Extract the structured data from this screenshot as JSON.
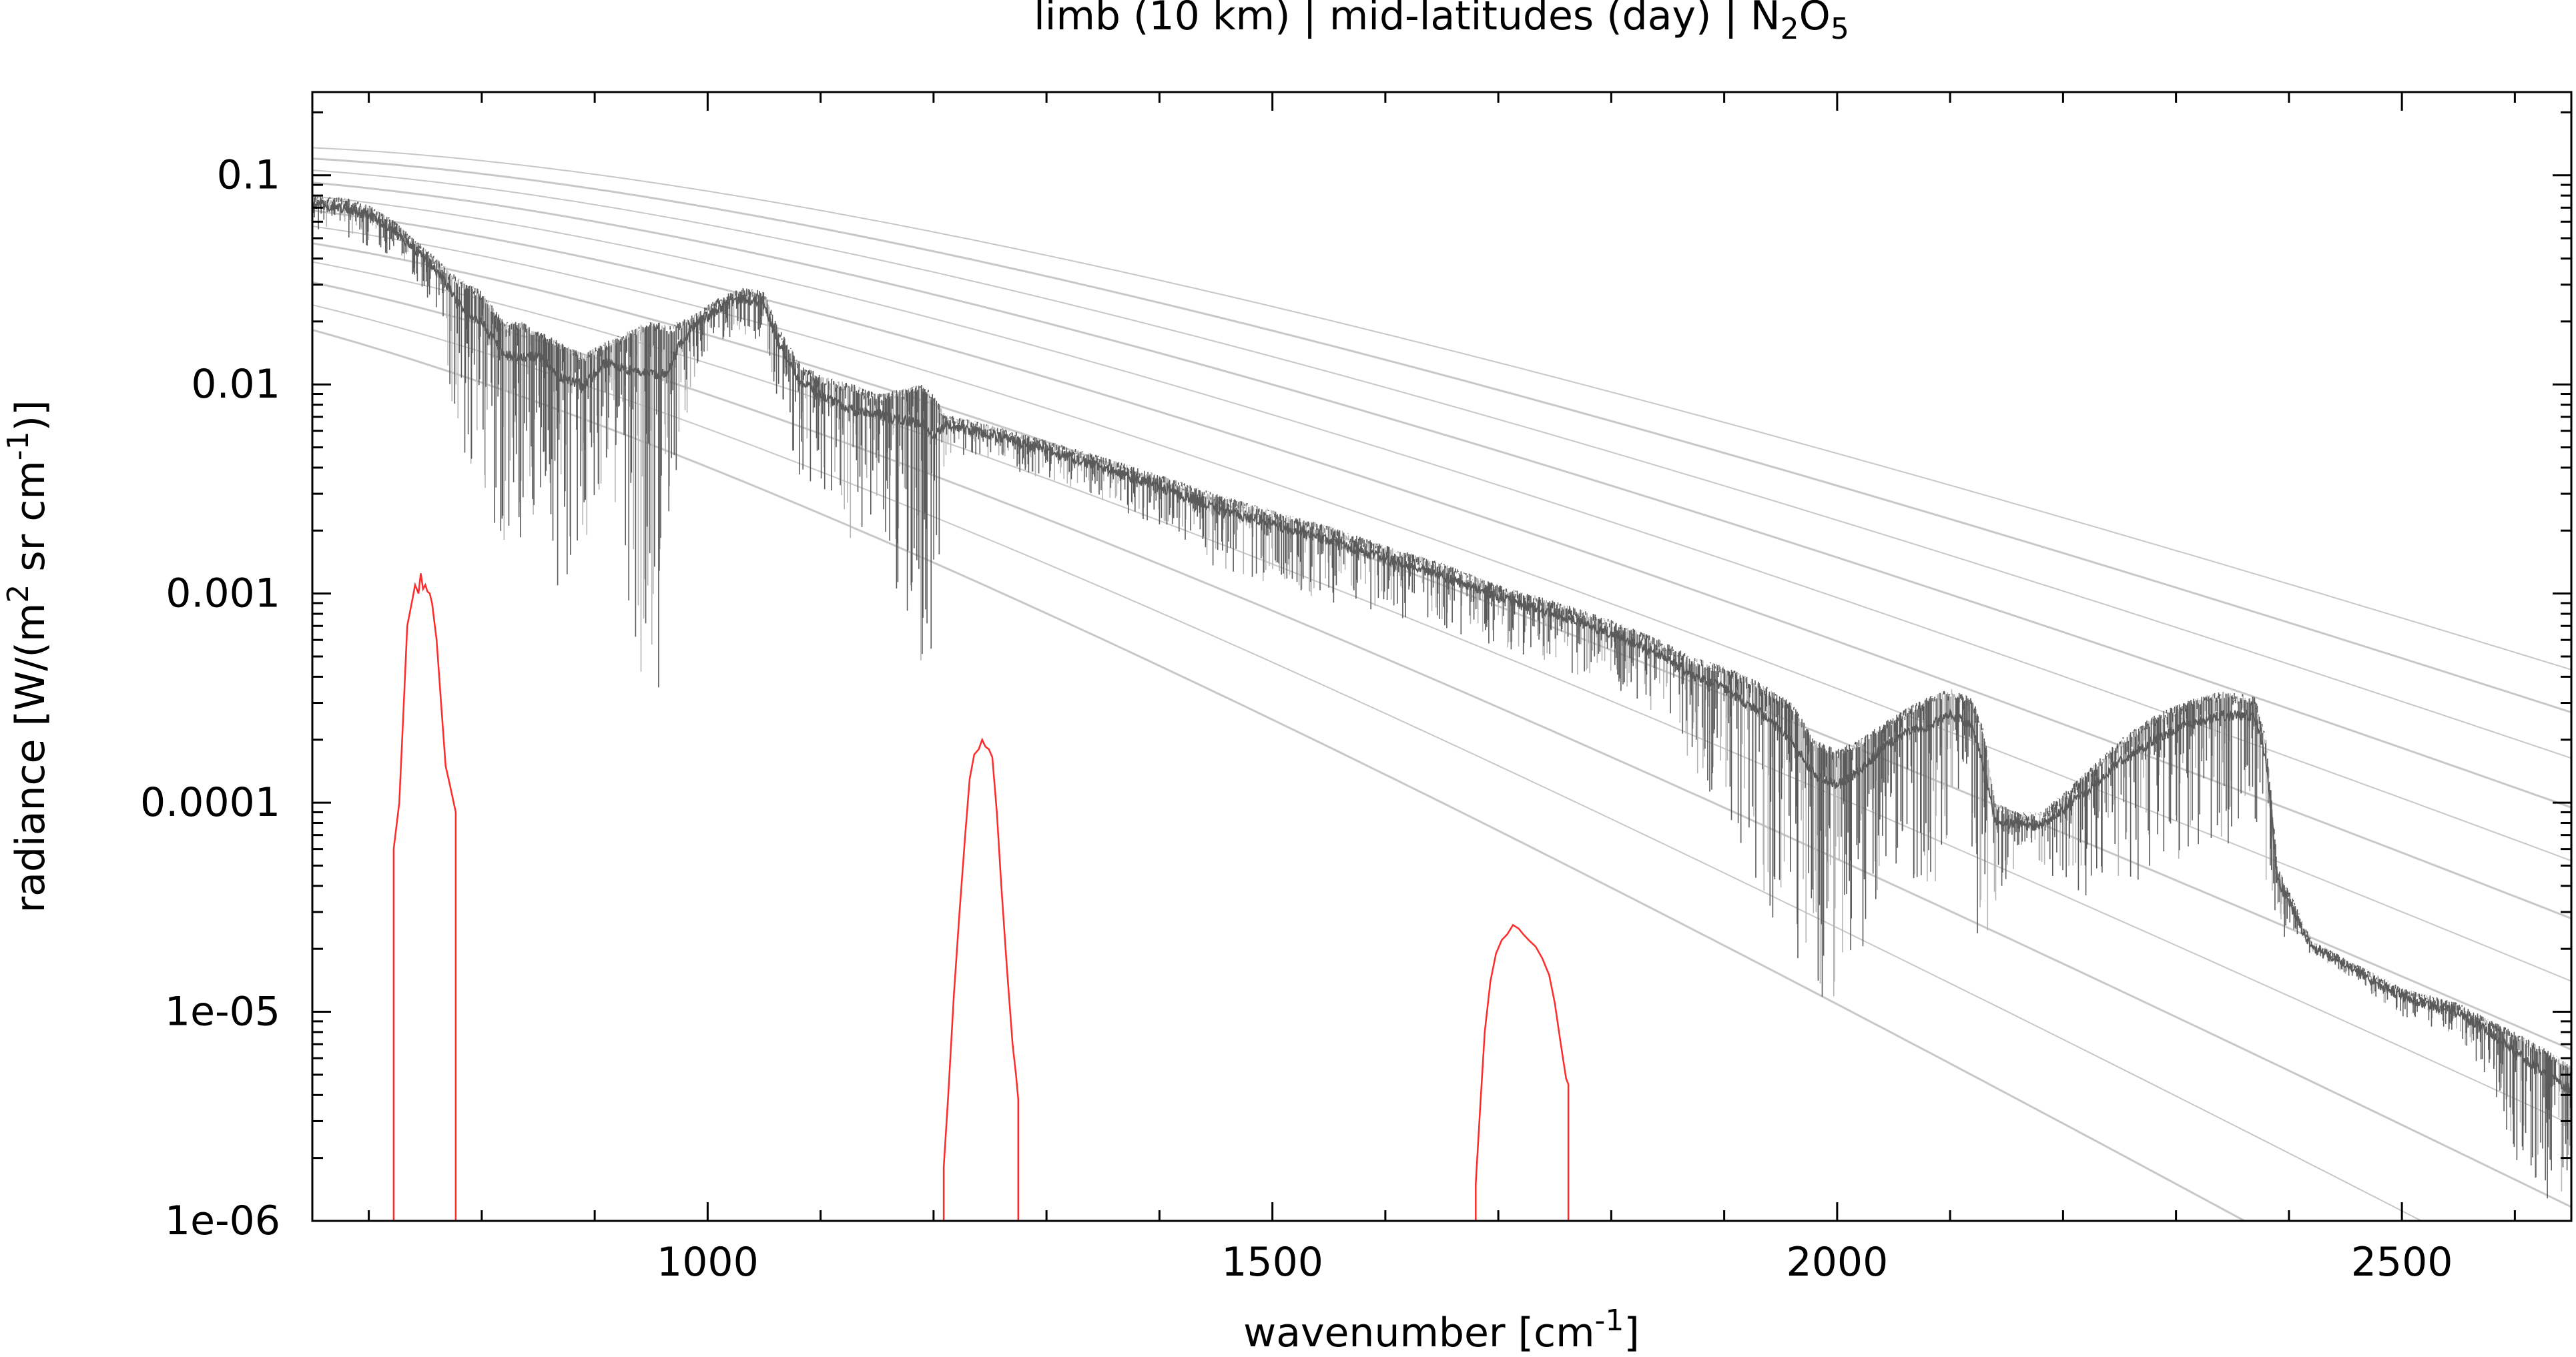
{
  "chart_data": {
    "type": "line",
    "title": {
      "prefix": "limb (10 km) | mid-latitudes (day) | N",
      "sub1": "2",
      "mid": "O",
      "sub2": "5"
    },
    "xlabel": {
      "base": "wavenumber [cm",
      "sup": "-1",
      "end": "]"
    },
    "ylabel": {
      "base": "radiance [W/(m",
      "sup1": "2",
      "mid": " sr cm",
      "sup2": "-1",
      "end": ")]"
    },
    "x_scale": "linear",
    "y_scale": "log",
    "xlim": [
      650,
      2650
    ],
    "ylim": [
      1e-06,
      0.25
    ],
    "x_ticks": [
      {
        "value": 1000,
        "label": "1000"
      },
      {
        "value": 1500,
        "label": "1500"
      },
      {
        "value": 2000,
        "label": "2000"
      },
      {
        "value": 2500,
        "label": "2500"
      }
    ],
    "y_ticks": [
      {
        "value": 0.1,
        "label": "0.1"
      },
      {
        "value": 0.01,
        "label": "0.01"
      },
      {
        "value": 0.001,
        "label": "0.001"
      },
      {
        "value": 0.0001,
        "label": "0.0001"
      },
      {
        "value": 1e-05,
        "label": "1e-05"
      },
      {
        "value": 1e-06,
        "label": "1e-06"
      }
    ],
    "grid": false,
    "legend": "none",
    "colors": {
      "spectrum": "#5a5a5a",
      "spectrum_light": "#b4b4b4",
      "filters": "#ff2a2a",
      "planck": "#c8c8c8",
      "axes": "#000000"
    },
    "planck_curves_K": [
      180,
      190,
      200,
      210,
      220,
      230,
      240,
      250,
      260,
      270,
      280,
      290
    ],
    "spectrum_envelope": {
      "x": [
        650,
        680,
        700,
        720,
        740,
        760,
        780,
        800,
        820,
        835,
        850,
        870,
        890,
        910,
        930,
        945,
        955,
        965,
        975,
        990,
        1010,
        1030,
        1050,
        1060,
        1080,
        1100,
        1130,
        1150,
        1170,
        1190,
        1200,
        1210,
        1230,
        1250,
        1300,
        1350,
        1400,
        1450,
        1500,
        1550,
        1600,
        1650,
        1700,
        1750,
        1800,
        1850,
        1870,
        1900,
        1930,
        1960,
        1980,
        2000,
        2020,
        2040,
        2060,
        2080,
        2100,
        2120,
        2130,
        2140,
        2160,
        2180,
        2200,
        2220,
        2250,
        2280,
        2310,
        2340,
        2360,
        2370,
        2380,
        2390,
        2420,
        2450,
        2500,
        2550,
        2580,
        2600,
        2620,
        2640,
        2650
      ],
      "upper": [
        0.08,
        0.078,
        0.072,
        0.062,
        0.05,
        0.04,
        0.032,
        0.028,
        0.02,
        0.02,
        0.018,
        0.016,
        0.014,
        0.016,
        0.018,
        0.02,
        0.02,
        0.019,
        0.02,
        0.022,
        0.026,
        0.029,
        0.028,
        0.02,
        0.013,
        0.011,
        0.01,
        0.009,
        0.0095,
        0.01,
        0.009,
        0.0072,
        0.0068,
        0.0064,
        0.0054,
        0.0045,
        0.0037,
        0.003,
        0.0025,
        0.0021,
        0.0017,
        0.0014,
        0.0011,
        0.00092,
        0.00075,
        0.00058,
        0.0005,
        0.00045,
        0.00038,
        0.0003,
        0.0002,
        0.00018,
        0.0002,
        0.00024,
        0.00028,
        0.00032,
        0.00035,
        0.00032,
        0.00022,
        0.0001,
        9e-05,
        9e-05,
        0.00011,
        0.00014,
        0.0002,
        0.00026,
        0.00031,
        0.00034,
        0.00033,
        0.00032,
        0.0002,
        5e-05,
        2.2e-05,
        1.8e-05,
        1.3e-05,
        1.1e-05,
        9e-06,
        8e-06,
        7e-06,
        6e-06,
        5.5e-06
      ],
      "lower": [
        0.055,
        0.05,
        0.045,
        0.04,
        0.033,
        0.02,
        0.005,
        0.0025,
        0.0015,
        0.0011,
        0.003,
        0.0009,
        0.0012,
        0.004,
        0.0008,
        0.0003,
        0.00022,
        0.0005,
        0.004,
        0.012,
        0.016,
        0.017,
        0.015,
        0.009,
        0.0035,
        0.003,
        0.0014,
        0.0025,
        0.0009,
        0.00045,
        0.00032,
        0.0045,
        0.0045,
        0.0042,
        0.0035,
        0.0027,
        0.002,
        0.0013,
        0.0011,
        0.0009,
        0.0008,
        0.00065,
        0.00055,
        0.00045,
        0.00035,
        0.00025,
        0.00015,
        9e-05,
        4e-05,
        1.6e-05,
        1.2e-05,
        1.1e-05,
        1.8e-05,
        4e-05,
        5e-05,
        3e-05,
        6e-05,
        3.5e-05,
        1.3e-05,
        2.8e-05,
        4.5e-05,
        4e-05,
        4.5e-05,
        3.5e-05,
        4e-05,
        4.5e-05,
        5e-05,
        6e-05,
        7e-05,
        8e-05,
        4e-05,
        2e-05,
        1.9e-05,
        1.5e-05,
        9.5e-06,
        7.5e-06,
        4.5e-06,
        2e-06,
        1.2e-06,
        1e-06,
        1e-06
      ]
    },
    "filter_channels": [
      {
        "x": [
          722,
          722,
          727,
          731,
          734,
          738,
          741,
          744,
          746,
          748,
          750,
          752,
          754,
          756,
          760,
          764,
          768,
          772,
          777,
          777
        ],
        "y": [
          1e-06,
          6e-05,
          0.0001,
          0.0003,
          0.0007,
          0.0009,
          0.0011,
          0.001,
          0.00125,
          0.00105,
          0.0011,
          0.00102,
          0.001,
          0.0009,
          0.0006,
          0.0003,
          0.00015,
          0.00012,
          9e-05,
          1e-06
        ]
      },
      {
        "x": [
          1209,
          1209,
          1213,
          1218,
          1223,
          1228,
          1232,
          1236,
          1240,
          1243,
          1246,
          1249,
          1252,
          1256,
          1260,
          1265,
          1270,
          1273,
          1275,
          1275
        ],
        "y": [
          1e-06,
          1.8e-06,
          4e-06,
          1.2e-05,
          3e-05,
          7e-05,
          0.00013,
          0.00017,
          0.00018,
          0.0002,
          0.000185,
          0.00018,
          0.000165,
          9e-05,
          4e-05,
          1.6e-05,
          7e-06,
          5e-06,
          3.8e-06,
          1e-06
        ]
      },
      {
        "x": [
          1680,
          1680,
          1684,
          1688,
          1693,
          1698,
          1703,
          1708,
          1713,
          1718,
          1722,
          1727,
          1733,
          1739,
          1745,
          1750,
          1755,
          1760,
          1762,
          1762
        ],
        "y": [
          1e-06,
          1.5e-06,
          3.5e-06,
          8e-06,
          1.4e-05,
          1.9e-05,
          2.2e-05,
          2.35e-05,
          2.6e-05,
          2.5e-05,
          2.35e-05,
          2.2e-05,
          2.05e-05,
          1.8e-05,
          1.5e-05,
          1.1e-05,
          7.2e-06,
          4.8e-06,
          4.5e-06,
          1e-06
        ]
      }
    ]
  }
}
